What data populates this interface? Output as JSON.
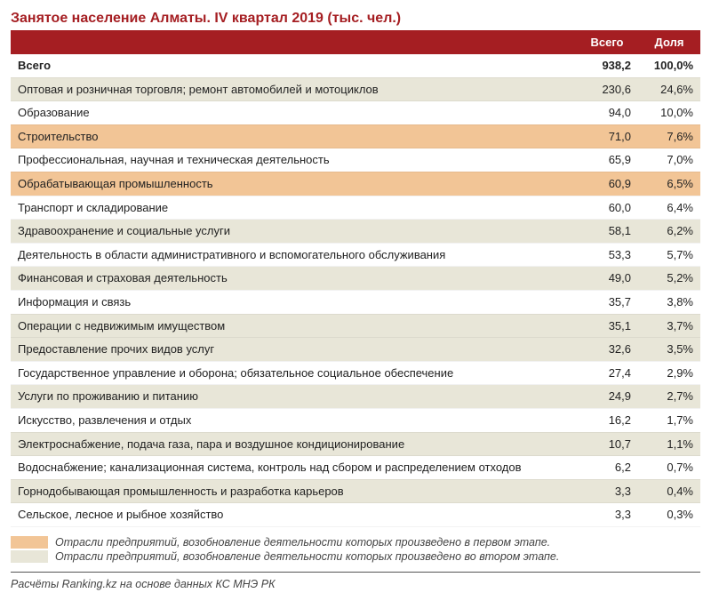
{
  "title": "Занятое население Алматы. IV квартал 2019 (тыс. чел.)",
  "columns": {
    "label": "",
    "total": "Всего",
    "share": "Доля"
  },
  "colors": {
    "header_bg": "#a51e22",
    "header_text": "#ffffff",
    "row_white": "#ffffff",
    "row_beige": "#e8e6d8",
    "row_orange": "#f2c596",
    "title_color": "#a51e22"
  },
  "total_row": {
    "label": "Всего",
    "total": "938,2",
    "share": "100,0%"
  },
  "rows": [
    {
      "label": "Оптовая и розничная торговля; ремонт автомобилей и мотоциклов",
      "total": "230,6",
      "share": "24,6%",
      "variant": "beige"
    },
    {
      "label": "Образование",
      "total": "94,0",
      "share": "10,0%",
      "variant": "white"
    },
    {
      "label": "Строительство",
      "total": "71,0",
      "share": "7,6%",
      "variant": "orange"
    },
    {
      "label": "Профессиональная, научная и техническая деятельность",
      "total": "65,9",
      "share": "7,0%",
      "variant": "white"
    },
    {
      "label": "Обрабатывающая промышленность",
      "total": "60,9",
      "share": "6,5%",
      "variant": "orange"
    },
    {
      "label": "Транспорт и складирование",
      "total": "60,0",
      "share": "6,4%",
      "variant": "white"
    },
    {
      "label": "Здравоохранение и социальные услуги",
      "total": "58,1",
      "share": "6,2%",
      "variant": "beige"
    },
    {
      "label": "Деятельность в области административного и вспомогательного обслуживания",
      "total": "53,3",
      "share": "5,7%",
      "variant": "white"
    },
    {
      "label": "Финансовая и страховая деятельность",
      "total": "49,0",
      "share": "5,2%",
      "variant": "beige"
    },
    {
      "label": "Информация и связь",
      "total": "35,7",
      "share": "3,8%",
      "variant": "white"
    },
    {
      "label": "Операции с недвижимым имуществом",
      "total": "35,1",
      "share": "3,7%",
      "variant": "beige"
    },
    {
      "label": "Предоставление прочих видов услуг",
      "total": "32,6",
      "share": "3,5%",
      "variant": "beige"
    },
    {
      "label": "Государственное управление и оборона; обязательное социальное обеспечение",
      "total": "27,4",
      "share": "2,9%",
      "variant": "white"
    },
    {
      "label": "Услуги по проживанию и питанию",
      "total": "24,9",
      "share": "2,7%",
      "variant": "beige"
    },
    {
      "label": "Искусство, развлечения и отдых",
      "total": "16,2",
      "share": "1,7%",
      "variant": "white"
    },
    {
      "label": "Электроснабжение, подача газа, пара и воздушное кондиционирование",
      "total": "10,7",
      "share": "1,1%",
      "variant": "beige"
    },
    {
      "label": "Водоснабжение; канализационная система, контроль над сбором и распределением отходов",
      "total": "6,2",
      "share": "0,7%",
      "variant": "white"
    },
    {
      "label": "Горнодобывающая промышленность и разработка карьеров",
      "total": "3,3",
      "share": "0,4%",
      "variant": "beige"
    },
    {
      "label": "Сельское, лесное и рыбное хозяйство",
      "total": "3,3",
      "share": "0,3%",
      "variant": "white"
    }
  ],
  "legend": {
    "orange": "Отрасли предприятий, возобновление деятельности которых произведено в первом этапе.",
    "beige": "Отрасли предприятий, возобновление деятельности которых произведено во втором этапе."
  },
  "source": "Расчёты Ranking.kz на основе данных КС МНЭ РК"
}
